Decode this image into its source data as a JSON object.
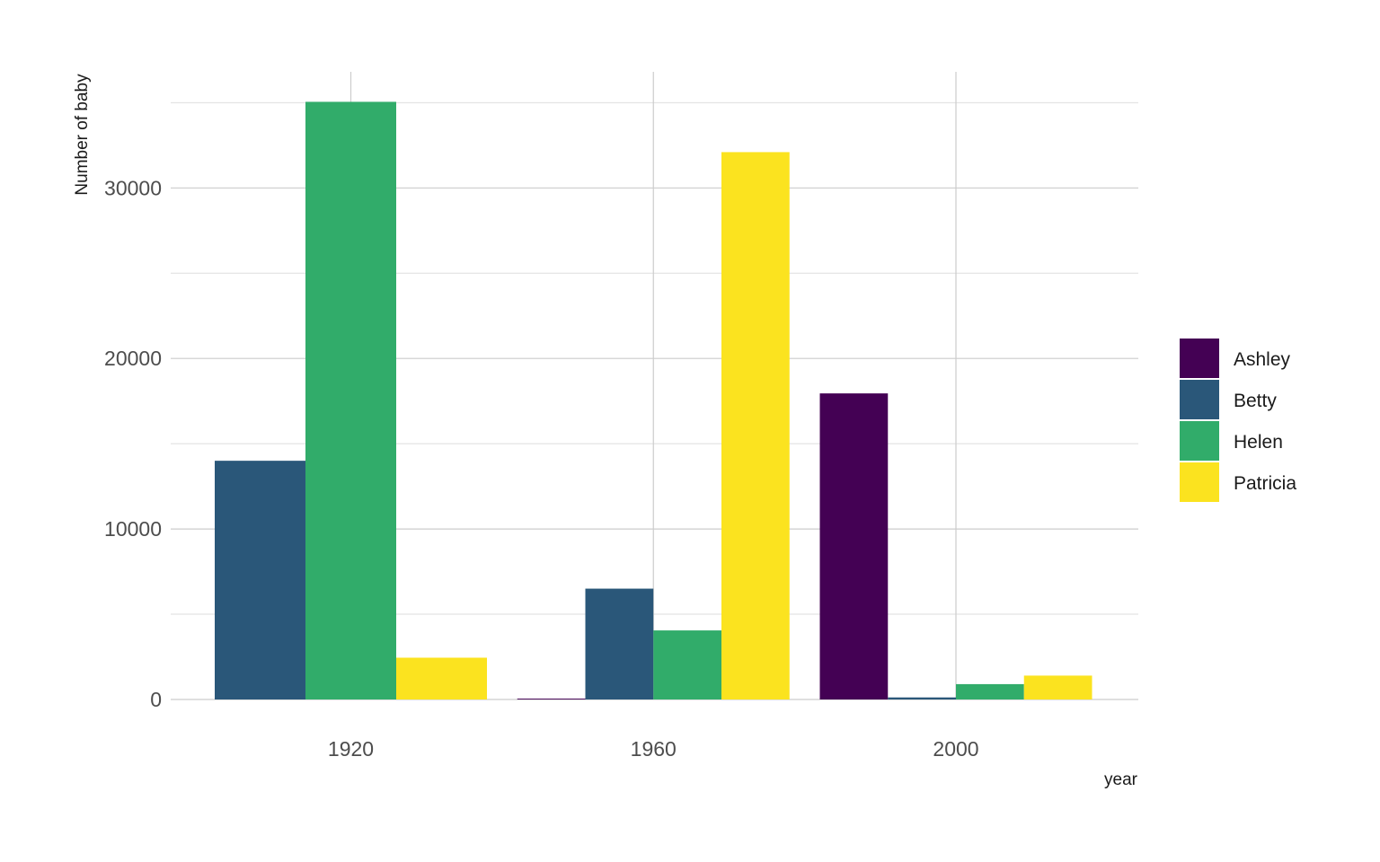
{
  "chart_data": {
    "type": "bar",
    "categories": [
      "1920",
      "1960",
      "2000"
    ],
    "series": [
      {
        "name": "Ashley",
        "color": "#440154",
        "values": [
          0,
          50,
          17950
        ]
      },
      {
        "name": "Betty",
        "color": "#2A5779",
        "values": [
          14000,
          6500,
          120
        ]
      },
      {
        "name": "Helen",
        "color": "#31AC6A",
        "values": [
          35050,
          4050,
          900
        ]
      },
      {
        "name": "Patricia",
        "color": "#FBE31F",
        "values": [
          2450,
          32100,
          1400
        ]
      }
    ],
    "xlabel": "year",
    "ylabel": "Number of baby",
    "ylim": [
      0,
      36750
    ],
    "yticks": [
      "0",
      "10000",
      "20000",
      "30000"
    ],
    "grid": true,
    "legend_position": "right"
  }
}
